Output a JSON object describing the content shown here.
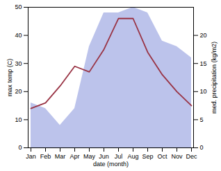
{
  "chart_data": {
    "type": "line",
    "categories": [
      "Jan",
      "Feb",
      "Mar",
      "Apr",
      "May",
      "Jun",
      "Jul",
      "Aug",
      "Sep",
      "Oct",
      "Nov",
      "Dec"
    ],
    "xlabel": "date (month)",
    "ylabel": "max temp (C)",
    "y2label": "med. precipitation (kg/m2)",
    "ylim": [
      0,
      50
    ],
    "yticks": [
      0,
      10,
      20,
      30,
      40,
      50
    ],
    "y2lim": [
      0,
      25
    ],
    "y2ticks": [
      0,
      5,
      10,
      15,
      20
    ],
    "grid": false,
    "series": [
      {
        "type": "area",
        "axis": "y2",
        "color": "#b0b8e8",
        "values": [
          8,
          7,
          4,
          7,
          18,
          24,
          24,
          25,
          24,
          19,
          18,
          16
        ]
      },
      {
        "type": "line",
        "color": "#993344",
        "values": [
          14,
          16,
          22,
          29,
          27,
          35,
          46,
          46,
          34,
          26,
          20,
          15
        ]
      }
    ]
  }
}
